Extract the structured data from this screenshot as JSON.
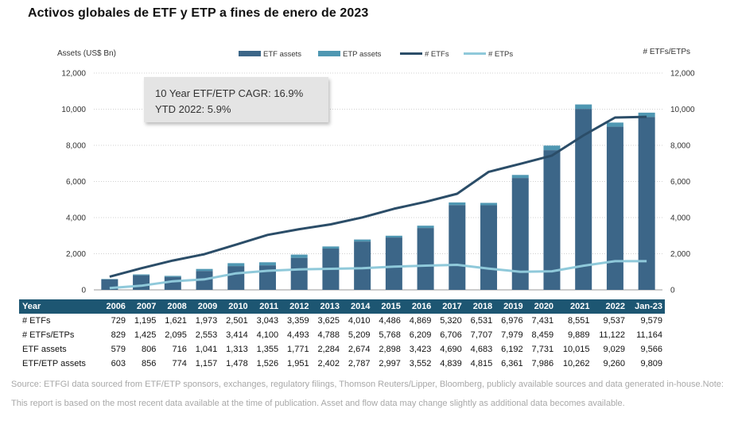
{
  "title": "Activos globales de ETF y ETP a fines de enero de 2023",
  "callout": {
    "line1": "10 Year ETF/ETP CAGR: 16.9%",
    "line2": "YTD 2022: 5.9%"
  },
  "source_note": "Source: ETFGI data sourced from ETF/ETP sponsors, exchanges, regulatory filings, Thomson Reuters/Lipper, Bloomberg, publicly available sources and data generated in-house.Note: This report is based on the most recent data available at the time of publication. Asset and flow data may change slightly as additional data becomes available.",
  "colors": {
    "etf_assets": "#3c6688",
    "etp_assets": "#4f97b2",
    "num_etfs": "#2b4d68",
    "num_etps": "#8fc9da",
    "table_header": "#1d5672"
  },
  "chart_data": {
    "type": "bar",
    "title": "Activos globales de ETF y ETP a fines de enero de 2023",
    "ylabel_left": "Assets (US$ Bn)",
    "ylabel_right": "# ETFs/ETPs",
    "ylim": [
      0,
      12000
    ],
    "yticks": [
      "0",
      "2,000",
      "4,000",
      "6,000",
      "8,000",
      "10,000",
      "12,000"
    ],
    "yticks_right": [
      "0",
      "2,000",
      "4,000",
      "6,000",
      "8,000",
      "10,000",
      "12,000"
    ],
    "categories": [
      "2006",
      "2007",
      "2008",
      "2009",
      "2010",
      "2011",
      "2012",
      "2013",
      "2014",
      "2015",
      "2016",
      "2017",
      "2018",
      "2019",
      "2020",
      "2021",
      "2022",
      "Jan-23"
    ],
    "legend": [
      "ETF assets",
      "ETP assets",
      "# ETFs",
      "# ETPs"
    ],
    "series": [
      {
        "name": "ETF assets",
        "kind": "bar",
        "values": [
          579,
          806,
          716,
          1041,
          1313,
          1355,
          1771,
          2284,
          2674,
          2898,
          3423,
          4690,
          4683,
          6192,
          7731,
          10015,
          9029,
          9566
        ]
      },
      {
        "name": "ETP assets",
        "kind": "bar-stack",
        "values": [
          24,
          50,
          58,
          116,
          165,
          171,
          180,
          118,
          113,
          99,
          129,
          149,
          132,
          169,
          255,
          247,
          231,
          243
        ]
      },
      {
        "name": "# ETFs",
        "kind": "line",
        "values": [
          729,
          1195,
          1621,
          1973,
          2501,
          3043,
          3359,
          3625,
          4010,
          4486,
          4869,
          5320,
          6531,
          6976,
          7431,
          8551,
          9537,
          9579
        ]
      },
      {
        "name": "# ETPs",
        "kind": "line",
        "values": [
          100,
          230,
          474,
          580,
          913,
          1057,
          1134,
          1163,
          1199,
          1282,
          1340,
          1386,
          1176,
          1003,
          1028,
          1338,
          1585,
          1585
        ]
      }
    ]
  },
  "table": {
    "header": "Year",
    "years": [
      "2006",
      "2007",
      "2008",
      "2009",
      "2010",
      "2011",
      "2012",
      "2013",
      "2014",
      "2015",
      "2016",
      "2017",
      "2018",
      "2019",
      "2020",
      "2021",
      "2022",
      "Jan-23"
    ],
    "rows": [
      {
        "label": "# ETFs",
        "values": [
          "729",
          "1,195",
          "1,621",
          "1,973",
          "2,501",
          "3,043",
          "3,359",
          "3,625",
          "4,010",
          "4,486",
          "4,869",
          "5,320",
          "6,531",
          "6,976",
          "7,431",
          "8,551",
          "9,537",
          "9,579"
        ]
      },
      {
        "label": "# ETFs/ETPs",
        "values": [
          "829",
          "1,425",
          "2,095",
          "2,553",
          "3,414",
          "4,100",
          "4,493",
          "4,788",
          "5,209",
          "5,768",
          "6,209",
          "6,706",
          "7,707",
          "7,979",
          "8,459",
          "9,889",
          "11,122",
          "11,164"
        ]
      },
      {
        "label": "ETF assets",
        "values": [
          "579",
          "806",
          "716",
          "1,041",
          "1,313",
          "1,355",
          "1,771",
          "2,284",
          "2,674",
          "2,898",
          "3,423",
          "4,690",
          "4,683",
          "6,192",
          "7,731",
          "10,015",
          "9,029",
          "9,566"
        ]
      },
      {
        "label": "ETF/ETP assets",
        "values": [
          "603",
          "856",
          "774",
          "1,157",
          "1,478",
          "1,526",
          "1,951",
          "2,402",
          "2,787",
          "2,997",
          "3,552",
          "4,839",
          "4,815",
          "6,361",
          "7,986",
          "10,262",
          "9,260",
          "9,809"
        ]
      }
    ]
  }
}
